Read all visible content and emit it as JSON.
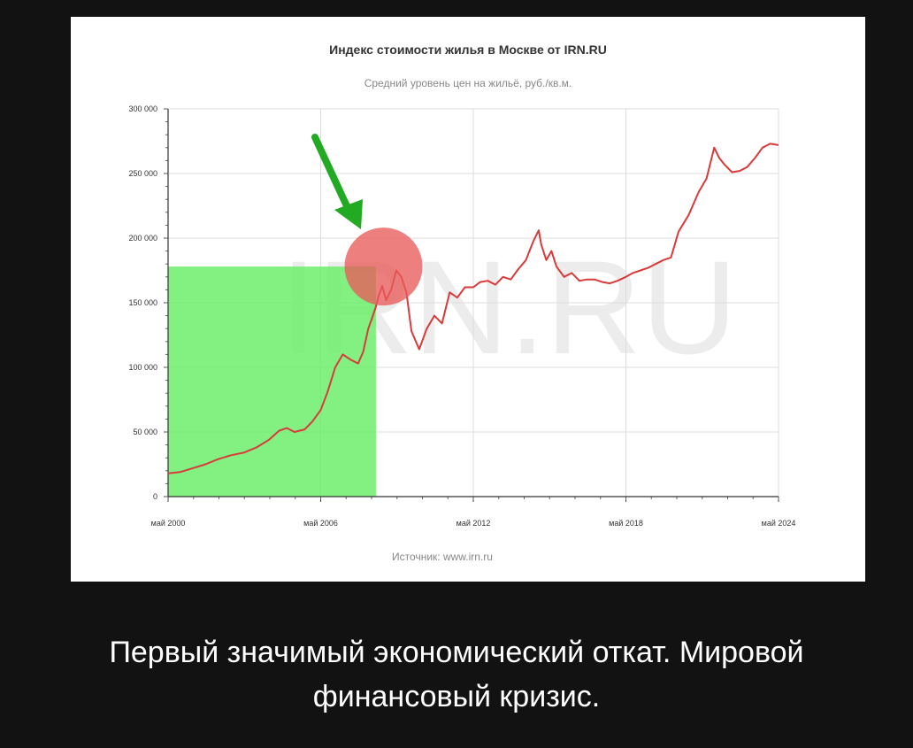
{
  "chart_data": {
    "type": "line",
    "title": "Индекс стоимости жилья в Москве от IRN.RU",
    "subtitle": "Средний уровень цен на жильё, руб./кв.м.",
    "source": "Источник: www.irn.ru",
    "watermark": "IRN.RU",
    "xlim": [
      2000.33,
      2024.33
    ],
    "ylim": [
      0,
      300000
    ],
    "ytick_values": [
      0,
      50000,
      100000,
      150000,
      200000,
      250000,
      300000
    ],
    "ytick_labels": [
      "0",
      "50 000",
      "100 000",
      "150 000",
      "200 000",
      "250 000",
      "300 000"
    ],
    "xtick_values": [
      2000.33,
      2006.33,
      2012.33,
      2018.33,
      2024.33
    ],
    "xtick_labels": [
      "май 2000",
      "май 2006",
      "май 2012",
      "май 2018",
      "май 2024"
    ],
    "grid": true,
    "series": [
      {
        "color": "#d93a3a",
        "x": [
          2000.33,
          2000.8,
          2001.3,
          2001.8,
          2002.3,
          2002.8,
          2003.3,
          2003.8,
          2004.3,
          2004.7,
          2005.0,
          2005.3,
          2005.7,
          2006.0,
          2006.33,
          2006.6,
          2006.9,
          2007.2,
          2007.5,
          2007.8,
          2008.0,
          2008.2,
          2008.33,
          2008.5,
          2008.6,
          2008.75,
          2008.9,
          2009.1,
          2009.3,
          2009.5,
          2009.7,
          2009.9,
          2010.2,
          2010.5,
          2010.8,
          2011.1,
          2011.4,
          2011.7,
          2012.0,
          2012.33,
          2012.6,
          2012.9,
          2013.2,
          2013.5,
          2013.8,
          2014.1,
          2014.4,
          2014.7,
          2014.9,
          2015.0,
          2015.2,
          2015.4,
          2015.6,
          2015.9,
          2016.2,
          2016.5,
          2016.8,
          2017.1,
          2017.4,
          2017.7,
          2018.0,
          2018.33,
          2018.6,
          2018.9,
          2019.2,
          2019.5,
          2019.8,
          2020.1,
          2020.4,
          2020.8,
          2021.2,
          2021.5,
          2021.8,
          2022.0,
          2022.2,
          2022.5,
          2022.8,
          2023.1,
          2023.4,
          2023.7,
          2024.0,
          2024.33
        ],
        "y": [
          18000,
          19000,
          22000,
          25000,
          29000,
          32000,
          34000,
          38000,
          44000,
          51000,
          53000,
          50000,
          52000,
          58000,
          67000,
          81000,
          100000,
          110000,
          106000,
          103000,
          112000,
          130000,
          137000,
          147000,
          155000,
          163000,
          152000,
          160000,
          175000,
          170000,
          158000,
          128000,
          114000,
          130000,
          140000,
          134000,
          158000,
          154000,
          162000,
          162000,
          166000,
          167000,
          164000,
          170000,
          168000,
          176000,
          183000,
          198000,
          206000,
          195000,
          183000,
          190000,
          178000,
          170000,
          173000,
          167000,
          168000,
          168000,
          166000,
          165000,
          167000,
          170000,
          173000,
          175000,
          177000,
          180000,
          183000,
          185000,
          205000,
          218000,
          236000,
          246000,
          270000,
          262000,
          257000,
          251000,
          252000,
          255000,
          262000,
          270000,
          273000,
          272000
        ]
      }
    ],
    "annotations": [
      {
        "type": "highlight-rect",
        "x0": 2000.33,
        "x1": 2008.5,
        "y0": 0,
        "y1": 178000,
        "color": "#66ee66"
      },
      {
        "type": "circle",
        "x": 2008.8,
        "y": 178000,
        "color": "#e85b5b"
      },
      {
        "type": "arrow",
        "color": "#22aa22"
      }
    ]
  },
  "caption": {
    "line1": "Первый значимый экономический откат. Мировой",
    "line2": "финансовый кризис."
  }
}
